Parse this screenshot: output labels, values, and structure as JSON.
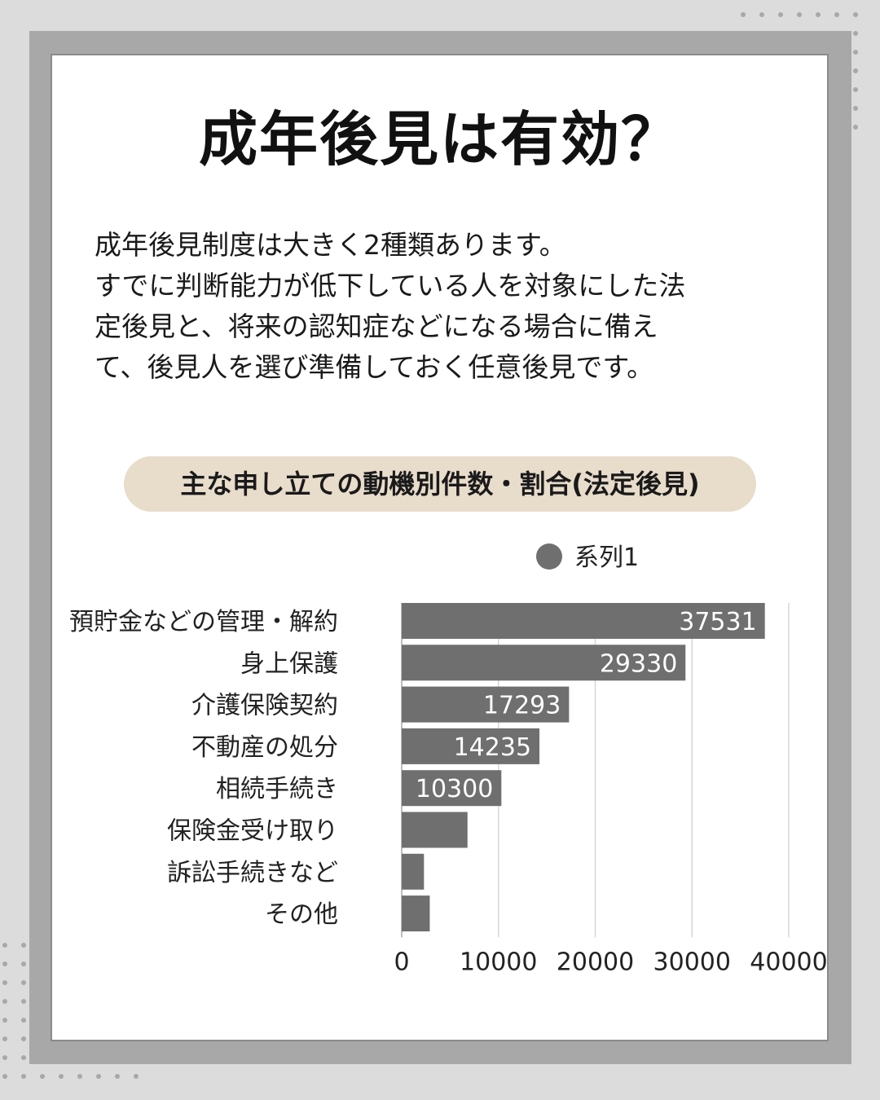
{
  "title": "成年後見は有効？",
  "description": [
    "成年後見制度は大きく2種類あります。",
    "すでに判断能力が低下している人を対象にした法",
    "定後見と、将来の認知症などになる場合に備え",
    "て、後見人を選び準備しておく任意後見です。"
  ],
  "chart_title": "主な申し立ての動機別件数・割合(法定後見)",
  "colors": {
    "bar": "#6f6f6f",
    "pill": "#e8dccb",
    "frame": "#a8a8a8",
    "background": "#dcdcdc"
  },
  "chart_data": {
    "type": "bar",
    "orientation": "horizontal",
    "categories": [
      "預貯金などの管理・解約",
      "身上保護",
      "介護保険契約",
      "不動産の処分",
      "相続手続き",
      "保険金受け取り",
      "訴訟手続きなど",
      "その他"
    ],
    "series": [
      {
        "name": "系列1",
        "values": [
          37531,
          29330,
          17293,
          14235,
          10300,
          6800,
          2300,
          2900
        ],
        "data_labels": [
          "37531",
          "29330",
          "17293",
          "14235",
          "10300",
          "",
          "",
          ""
        ]
      }
    ],
    "xlim": [
      0,
      40000
    ],
    "xticks": [
      0,
      10000,
      20000,
      30000,
      40000
    ],
    "grid": true,
    "legend": "top"
  }
}
